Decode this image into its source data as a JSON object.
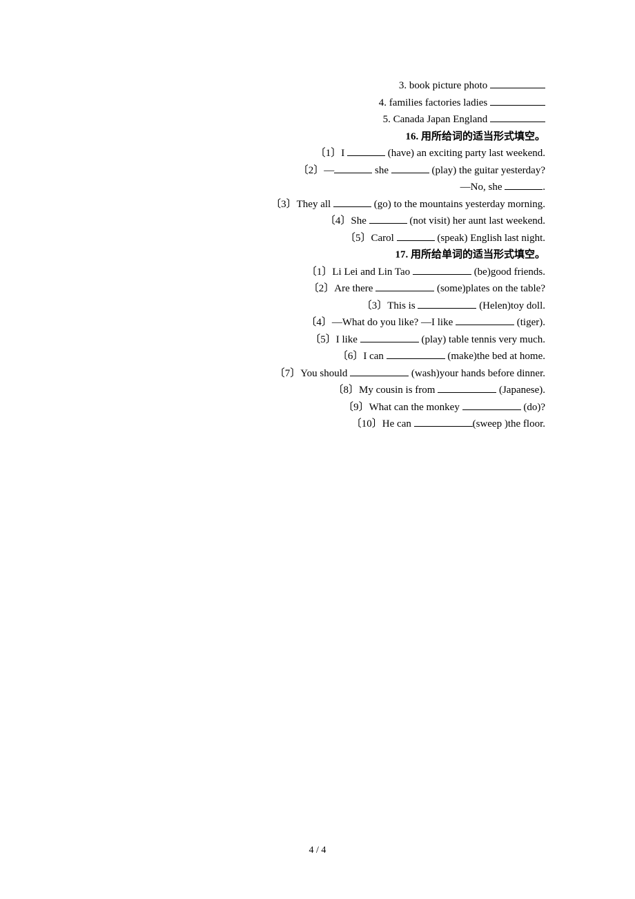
{
  "lines": {
    "l1_pre": "3. book    picture    photo ",
    "l2_pre": "4. families    factories    ladies ",
    "l3_pre": "5. Canada    Japan    England ",
    "h16": "16. 用所给词的适当形式填空。",
    "q16_1a": "〔1〕I ",
    "q16_1b": " (have) an exciting party last weekend.",
    "q16_2a": "〔2〕—",
    "q16_2b": " she ",
    "q16_2c": " (play) the guitar yesterday?",
    "q16_2d": "—No, she ",
    "q16_2e": ".",
    "q16_3a": "〔3〕They all ",
    "q16_3b": " (go) to the mountains yesterday morning.",
    "q16_4a": "〔4〕She ",
    "q16_4b": " (not visit) her aunt last weekend.",
    "q16_5a": "〔5〕Carol ",
    "q16_5b": " (speak) English last night.",
    "h17": "17. 用所给单词的适当形式填空。",
    "q17_1a": "〔1〕Li Lei and Lin Tao ",
    "q17_1b": " (be)good friends.",
    "q17_2a": "〔2〕Are there ",
    "q17_2b": " (some)plates on the table?",
    "q17_3a": "〔3〕This is ",
    "q17_3b": " (Helen)toy doll.",
    "q17_4a": "〔4〕—What do you like? —I like ",
    "q17_4b": " (tiger).",
    "q17_5a": "〔5〕I like ",
    "q17_5b": " (play) table tennis very much.",
    "q17_6a": "〔6〕I can ",
    "q17_6b": " (make)the bed at home.",
    "q17_7a": "〔7〕You should ",
    "q17_7b": " (wash)your hands before dinner.",
    "q17_8a": "〔8〕My cousin is from ",
    "q17_8b": " (Japanese).",
    "q17_9a": "〔9〕What can the monkey ",
    "q17_9b": " (do)?",
    "q17_10a": "〔10〕He can ",
    "q17_10b": "(sweep )the floor.",
    "pagenum": "4 / 4"
  }
}
